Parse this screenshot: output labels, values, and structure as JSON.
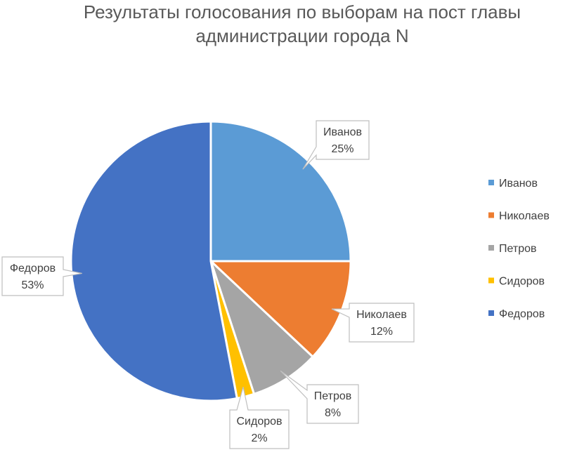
{
  "chart_data": {
    "type": "pie",
    "title_lines": [
      "Результаты голосования по выборам на пост главы",
      "администрации города N"
    ],
    "categories": [
      "Иванов",
      "Николаев",
      "Петров",
      "Сидоров",
      "Федоров"
    ],
    "values": [
      25,
      12,
      8,
      2,
      53
    ],
    "value_labels": [
      "25%",
      "12%",
      "8%",
      "2%",
      "53%"
    ],
    "colors": [
      "#5B9BD5",
      "#ED7D31",
      "#A5A5A5",
      "#FFC000",
      "#4472C4"
    ],
    "legend_position": "right"
  }
}
